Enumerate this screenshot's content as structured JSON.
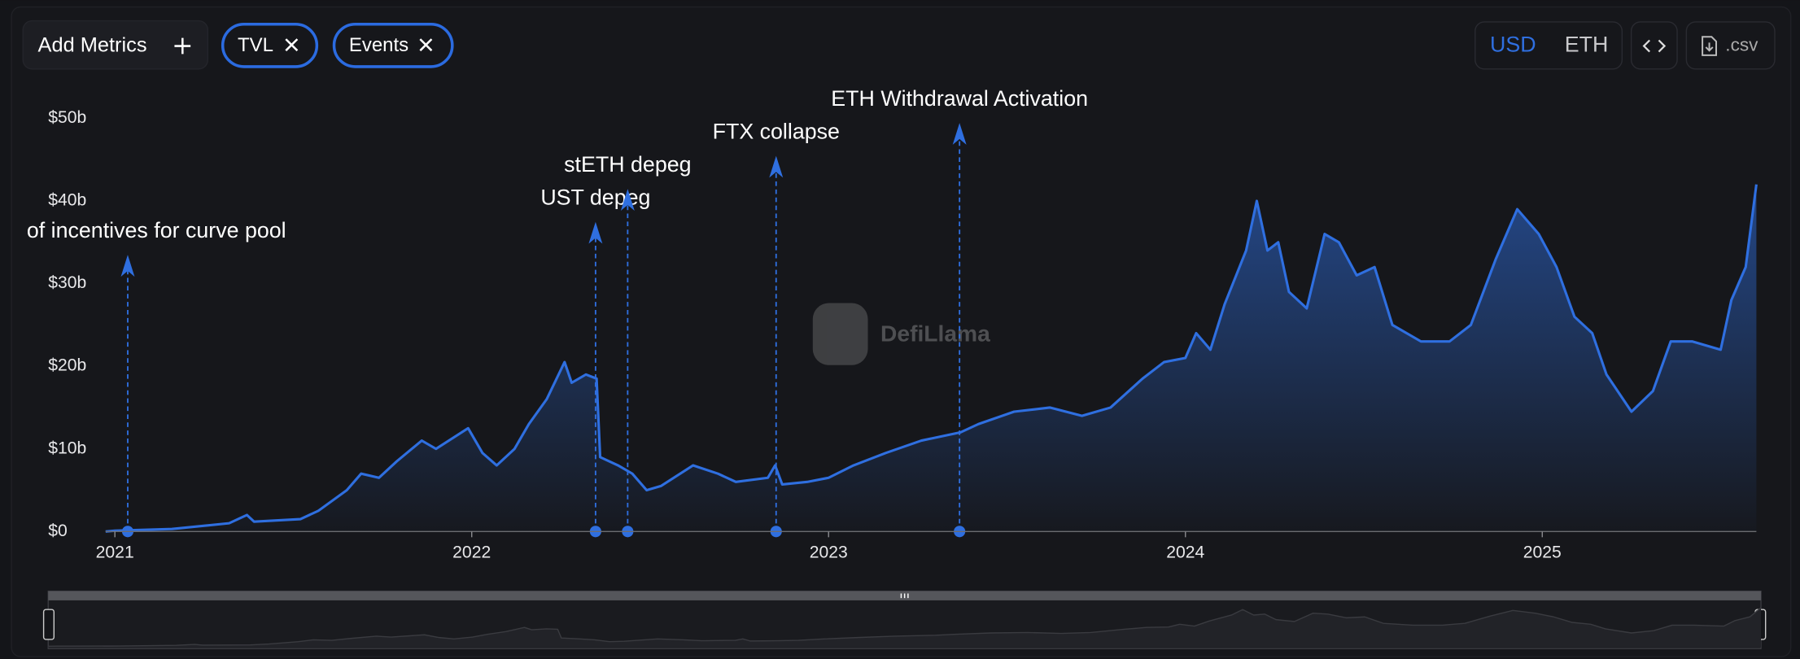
{
  "toolbar": {
    "add_metrics": "Add Metrics",
    "events_chip": "Events",
    "currencies": [
      {
        "label": "USD",
        "active": true
      },
      {
        "label": "ETH",
        "active": false
      }
    ],
    "csv": ".csv"
  },
  "watermark": "DefiLlama",
  "chart_data": {
    "type": "area",
    "x": [
      2020.974,
      2021.0,
      2021.16,
      2021.32,
      2021.37,
      2021.39,
      2021.52,
      2021.57,
      2021.65,
      2021.69,
      2021.74,
      2021.79,
      2021.86,
      2021.9,
      2021.99,
      2022.03,
      2022.07,
      2022.12,
      2022.16,
      2022.21,
      2022.26,
      2022.28,
      2022.32,
      2022.35,
      2022.36,
      2022.41,
      2022.45,
      2022.49,
      2022.53,
      2022.62,
      2022.69,
      2022.74,
      2022.83,
      2022.85,
      2022.87,
      2022.94,
      2023.0,
      2023.07,
      2023.16,
      2023.26,
      2023.37,
      2023.42,
      2023.52,
      2023.62,
      2023.71,
      2023.79,
      2023.88,
      2023.94,
      2024.0,
      2024.03,
      2024.07,
      2024.11,
      2024.17,
      2024.2,
      2024.23,
      2024.26,
      2024.29,
      2024.34,
      2024.39,
      2024.43,
      2024.48,
      2024.53,
      2024.58,
      2024.66,
      2024.74,
      2024.8,
      2024.87,
      2024.93,
      2024.99,
      2025.04,
      2025.09,
      2025.14,
      2025.18,
      2025.25,
      2025.31,
      2025.36,
      2025.42,
      2025.5,
      2025.53,
      2025.57,
      2025.6
    ],
    "series": [
      {
        "name": "TVL",
        "color": "#2f6fe0",
        "values": [
          0,
          0.1,
          0.3,
          1,
          2,
          1.2,
          1.5,
          2.5,
          5,
          7,
          6.5,
          8.5,
          11,
          10,
          12.5,
          9.5,
          8,
          10,
          13,
          16,
          20.5,
          18,
          19,
          18.5,
          9,
          8,
          7,
          5,
          5.5,
          8,
          7,
          6,
          6.5,
          8,
          5.7,
          6,
          6.5,
          8,
          9.5,
          11,
          12,
          13,
          14.5,
          15,
          14,
          15,
          18.5,
          20.5,
          21,
          24,
          22,
          27.5,
          34,
          40,
          34,
          35,
          29,
          27,
          36,
          35,
          31,
          32,
          25,
          23,
          23,
          25,
          33,
          39,
          36,
          32,
          26,
          24,
          19,
          14.5,
          17,
          23,
          23,
          22,
          28,
          32,
          42
        ]
      }
    ],
    "events": [
      {
        "x": 2021.036,
        "label": "of incentives for curve pool"
      },
      {
        "x": 2022.347,
        "label": "UST depeg"
      },
      {
        "x": 2022.437,
        "label": "stETH depeg"
      },
      {
        "x": 2022.853,
        "label": "FTX collapse"
      },
      {
        "x": 2023.367,
        "label": "ETH Withdrawal Activation"
      }
    ],
    "xlim": [
      2020.974,
      2025.6
    ],
    "xticks": [
      2021,
      2022,
      2023,
      2024,
      2025
    ],
    "ylim": [
      0,
      50
    ],
    "yticks": [
      {
        "value": 0,
        "label": "$0"
      },
      {
        "value": 10,
        "label": "$10b"
      },
      {
        "value": 20,
        "label": "$20b"
      },
      {
        "value": 30,
        "label": "$30b"
      },
      {
        "value": 40,
        "label": "$40b"
      },
      {
        "value": 50,
        "label": "$50b"
      }
    ],
    "grid": false
  }
}
